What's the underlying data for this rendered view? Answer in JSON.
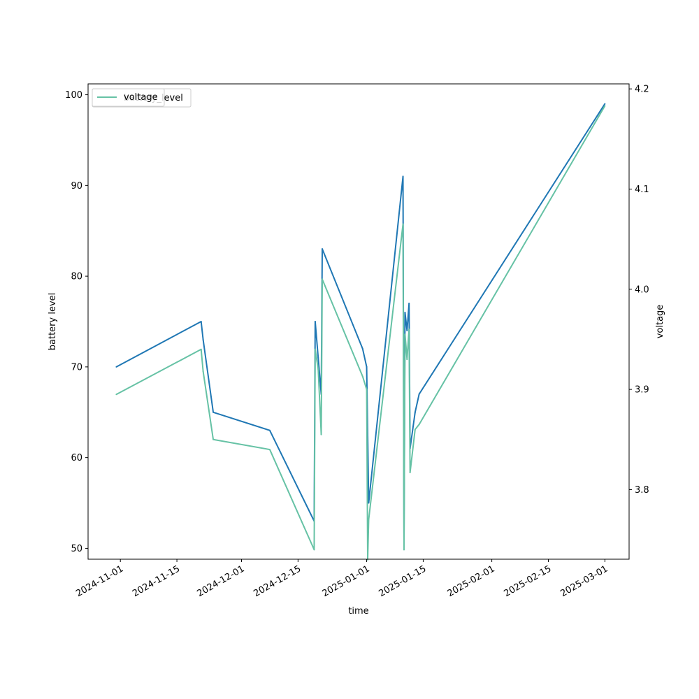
{
  "chart_data": {
    "type": "line",
    "xlabel": "time",
    "ylabel_left": "battery level",
    "ylabel_right": "voltage",
    "x_ticks": [
      "2024-11-01",
      "2024-11-15",
      "2024-12-01",
      "2024-12-15",
      "2025-01-01",
      "2025-01-15",
      "2025-02-01",
      "2025-02-15",
      "2025-03-01"
    ],
    "y_left_ticks": [
      50,
      60,
      70,
      80,
      90,
      100
    ],
    "y_right_ticks": [
      3.8,
      3.9,
      4.0,
      4.1,
      4.2
    ],
    "xlim": [
      "2024-10-24",
      "2025-03-07"
    ],
    "ylim_left": [
      48.8,
      101.2
    ],
    "ylim_right": [
      3.7305,
      4.205
    ],
    "legend": {
      "placement": "upper-left",
      "entries": [
        "voltage",
        "battery_level"
      ]
    },
    "series": [
      {
        "name": "battery_level",
        "axis": "left",
        "color": "#1f77b4",
        "points": [
          {
            "x": "2024-10-31",
            "y": 70
          },
          {
            "x": "2024-11-21",
            "y": 75
          },
          {
            "x": "2024-11-21T12:00",
            "y": 73
          },
          {
            "x": "2024-11-24",
            "y": 65
          },
          {
            "x": "2024-12-08",
            "y": 63
          },
          {
            "x": "2024-12-19",
            "y": 53
          },
          {
            "x": "2024-12-19T06:00",
            "y": 75
          },
          {
            "x": "2024-12-20",
            "y": 71
          },
          {
            "x": "2024-12-20T18:00",
            "y": 67
          },
          {
            "x": "2024-12-21",
            "y": 83
          },
          {
            "x": "2024-12-31",
            "y": 72
          },
          {
            "x": "2025-01-01",
            "y": 70
          },
          {
            "x": "2025-01-01T12:00",
            "y": 55
          },
          {
            "x": "2025-01-10",
            "y": 91
          },
          {
            "x": "2025-01-10T06:00",
            "y": 51
          },
          {
            "x": "2025-01-10T12:00",
            "y": 76
          },
          {
            "x": "2025-01-11",
            "y": 74
          },
          {
            "x": "2025-01-11T12:00",
            "y": 77
          },
          {
            "x": "2025-01-11T18:00",
            "y": 61
          },
          {
            "x": "2025-01-13",
            "y": 65
          },
          {
            "x": "2025-01-14",
            "y": 67
          },
          {
            "x": "2025-03-01",
            "y": 99
          }
        ]
      },
      {
        "name": "voltage",
        "axis": "right",
        "color": "#66c2a5",
        "points": [
          {
            "x": "2024-10-31",
            "y": 3.895
          },
          {
            "x": "2024-11-21",
            "y": 3.94
          },
          {
            "x": "2024-11-21T12:00",
            "y": 3.918
          },
          {
            "x": "2024-11-24",
            "y": 3.85
          },
          {
            "x": "2024-12-08",
            "y": 3.84
          },
          {
            "x": "2024-12-19",
            "y": 3.74
          },
          {
            "x": "2024-12-19T06:00",
            "y": 3.94
          },
          {
            "x": "2024-12-20",
            "y": 3.92
          },
          {
            "x": "2024-12-20T18:00",
            "y": 3.855
          },
          {
            "x": "2024-12-21",
            "y": 4.01
          },
          {
            "x": "2024-12-31",
            "y": 3.913
          },
          {
            "x": "2025-01-01",
            "y": 3.9
          },
          {
            "x": "2025-01-01T06:00",
            "y": 3.73
          },
          {
            "x": "2025-01-01T12:00",
            "y": 3.77
          },
          {
            "x": "2025-01-10",
            "y": 4.065
          },
          {
            "x": "2025-01-10T06:00",
            "y": 3.74
          },
          {
            "x": "2025-01-10T12:00",
            "y": 3.955
          },
          {
            "x": "2025-01-11",
            "y": 3.93
          },
          {
            "x": "2025-01-11T12:00",
            "y": 3.96
          },
          {
            "x": "2025-01-11T18:00",
            "y": 3.817
          },
          {
            "x": "2025-01-13",
            "y": 3.86
          },
          {
            "x": "2025-01-14",
            "y": 3.865
          },
          {
            "x": "2025-03-01",
            "y": 4.183
          }
        ]
      }
    ]
  }
}
